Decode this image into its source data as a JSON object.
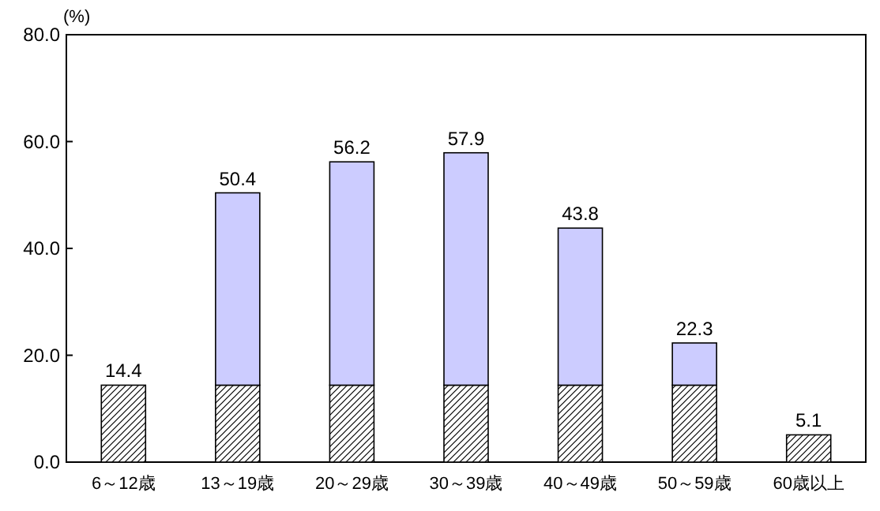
{
  "chart_data": {
    "type": "bar",
    "ylabel": "(%)",
    "stacked": true,
    "categories": [
      "6～12歳",
      "13～19歳",
      "20～29歳",
      "30～39歳",
      "40～49歳",
      "50～59歳",
      "60歳以上"
    ],
    "series": [
      {
        "color": "#000000",
        "values": [
          14.4,
          14.4,
          14.4,
          14.4,
          14.4,
          14.4,
          5.1
        ]
      },
      {
        "color": "#ccccff",
        "values": [
          0,
          36.0,
          41.8,
          43.5,
          29.4,
          7.9,
          0
        ]
      }
    ],
    "totals": [
      "14.4",
      "50.4",
      "56.2",
      "57.9",
      "43.8",
      "22.3",
      "5.1"
    ],
    "ylim": [
      0,
      80
    ],
    "yticks": [
      {
        "value": 0,
        "label": "0.0"
      },
      {
        "value": 20,
        "label": "20.0"
      },
      {
        "value": 40,
        "label": "40.0"
      },
      {
        "value": 60,
        "label": "60.0"
      },
      {
        "value": 80,
        "label": "80.0"
      }
    ]
  }
}
